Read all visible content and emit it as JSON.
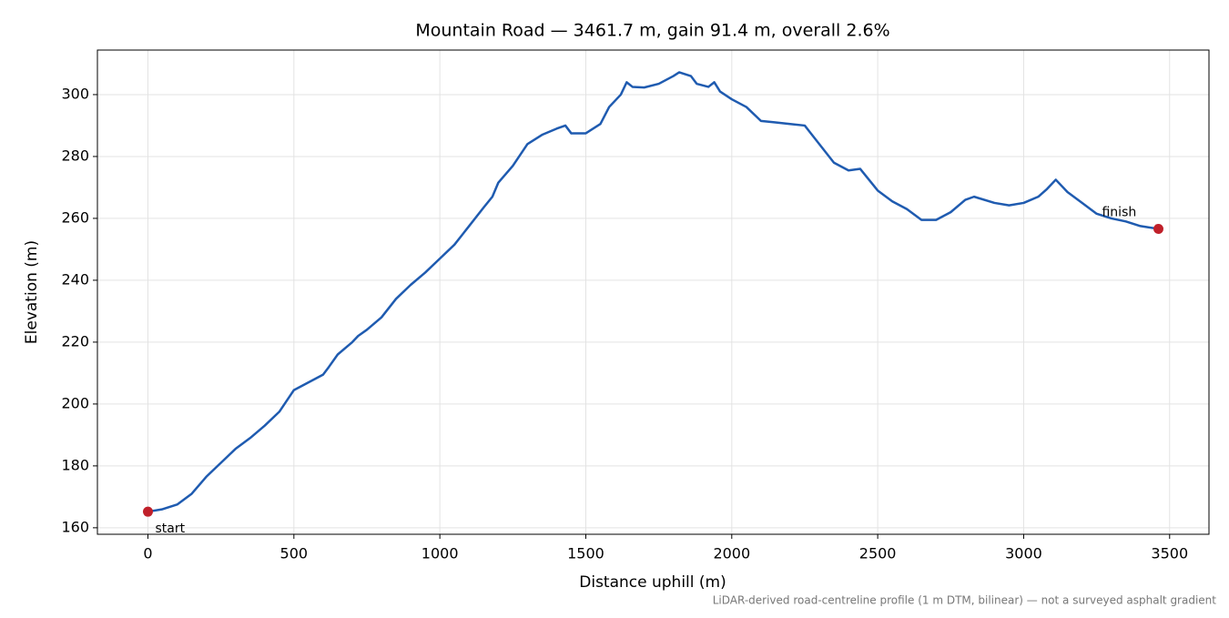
{
  "chart_data": {
    "type": "line",
    "title": "Mountain Road — 3461.7 m, gain 91.4 m, overall 2.6%",
    "xlabel": "Distance uphill (m)",
    "ylabel": "Elevation (m)",
    "footnote": "LiDAR-derived road-centreline profile (1 m DTM, bilinear) — not a surveyed asphalt gradient",
    "xlim": [
      -173.1,
      3634.8
    ],
    "ylim": [
      157.9,
      314.4
    ],
    "xticks": [
      0,
      500,
      1000,
      1500,
      2000,
      2500,
      3000,
      3500
    ],
    "yticks": [
      160,
      180,
      200,
      220,
      240,
      260,
      280,
      300
    ],
    "grid": true,
    "series": [
      {
        "color": "#1f5bb0",
        "x": [
          0,
          50,
          100,
          150,
          200,
          250,
          300,
          350,
          400,
          450,
          500,
          550,
          600,
          620,
          650,
          700,
          720,
          750,
          800,
          850,
          900,
          950,
          1000,
          1050,
          1100,
          1150,
          1180,
          1200,
          1250,
          1300,
          1350,
          1400,
          1430,
          1450,
          1500,
          1550,
          1580,
          1620,
          1640,
          1660,
          1700,
          1750,
          1800,
          1820,
          1860,
          1880,
          1920,
          1940,
          1960,
          2000,
          2050,
          2100,
          2150,
          2200,
          2250,
          2300,
          2350,
          2400,
          2440,
          2500,
          2550,
          2600,
          2650,
          2700,
          2750,
          2800,
          2830,
          2900,
          2950,
          3000,
          3050,
          3080,
          3110,
          3150,
          3200,
          3250,
          3300,
          3350,
          3400,
          3461.7
        ],
        "values": [
          165.2,
          166,
          167.5,
          171,
          176.5,
          181,
          185.5,
          189,
          193,
          197.5,
          204.5,
          207,
          209.5,
          212,
          216,
          220,
          222,
          224,
          228,
          234,
          238.5,
          242.5,
          247,
          251.5,
          257.5,
          263.5,
          267,
          271.5,
          277,
          284,
          287,
          289,
          290,
          287.5,
          287.5,
          290.5,
          296,
          300,
          304,
          302.5,
          302.3,
          303.5,
          306,
          307.2,
          306,
          303.5,
          302.5,
          304,
          301,
          298.5,
          296,
          291.5,
          291,
          290.5,
          290,
          284,
          278,
          275.5,
          276,
          269,
          265.5,
          263,
          259.5,
          259.5,
          262,
          266,
          267,
          265,
          264.2,
          265,
          267,
          269.5,
          272.5,
          268.5,
          265,
          261.5,
          260,
          259,
          257.5,
          256.6
        ]
      }
    ],
    "markers": {
      "color": "#c0202a",
      "x": [
        0,
        3461.7
      ],
      "values": [
        165.2,
        256.6
      ],
      "labels": [
        "start",
        "finish"
      ]
    }
  }
}
